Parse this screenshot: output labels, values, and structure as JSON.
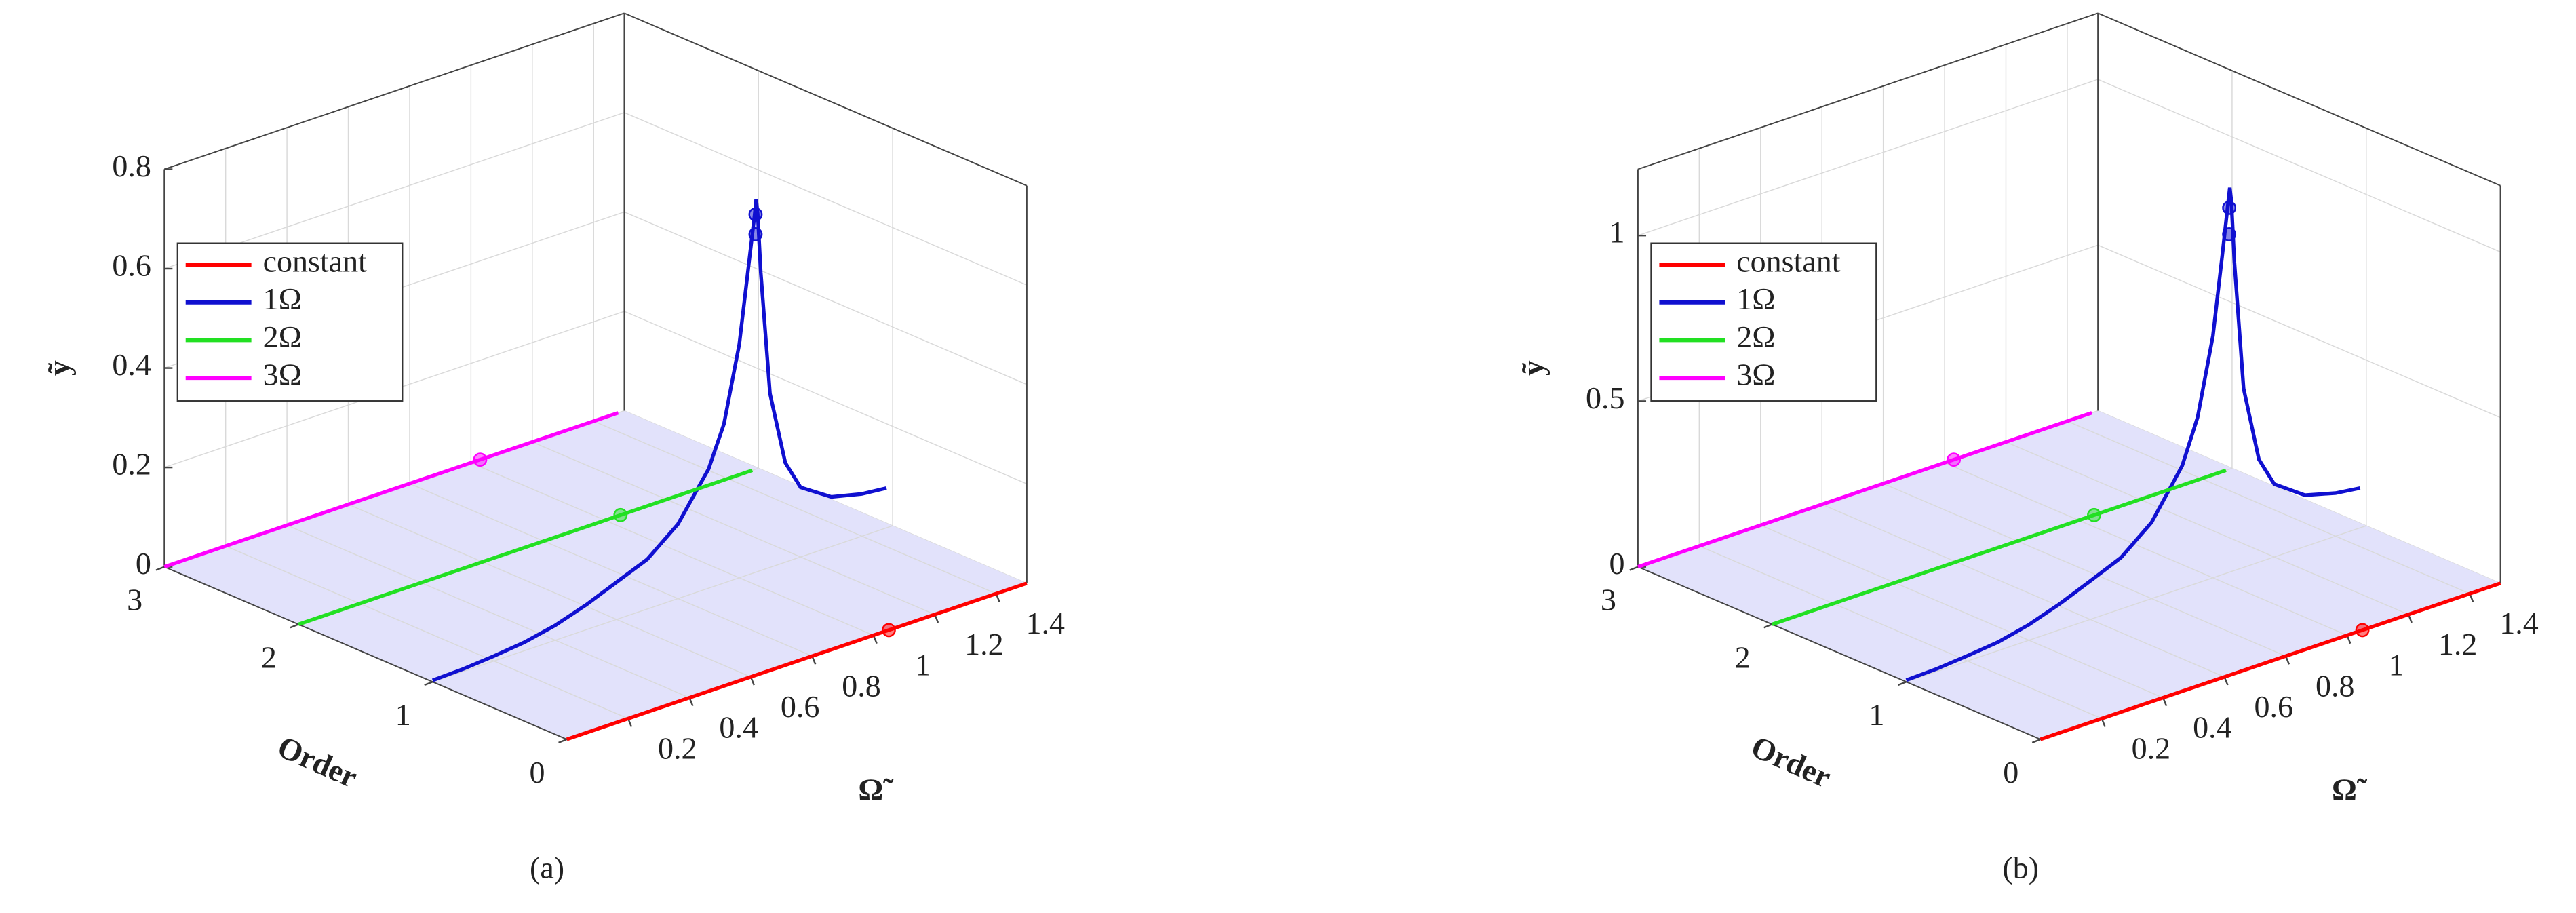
{
  "chart_data": [
    {
      "type": "line3d",
      "panel_label": "(a)",
      "xlabel": "Ω̃",
      "ylabel": "Order",
      "zlabel": "ỹ",
      "xlim": [
        0,
        1.5
      ],
      "ylim": [
        0,
        3
      ],
      "zlim": [
        0,
        0.8
      ],
      "xticks": [
        0.2,
        0.4,
        0.6,
        0.8,
        1,
        1.2,
        1.4
      ],
      "yticks": [
        0,
        1,
        2,
        3
      ],
      "zticks": [
        0,
        0.2,
        0.4,
        0.6,
        0.8
      ],
      "grid": true,
      "legend": "upper left",
      "series": [
        {
          "name": "constant",
          "color": "#ff0000",
          "order": 0,
          "x": [
            0,
            1.5
          ],
          "values": [
            0,
            0
          ],
          "marker_x": [
            1.05
          ],
          "marker_values": [
            0
          ]
        },
        {
          "name": "1Ω",
          "color": "#1010d0",
          "order": 1,
          "x": [
            0,
            0.1,
            0.2,
            0.3,
            0.4,
            0.5,
            0.6,
            0.7,
            0.8,
            0.9,
            0.95,
            1.0,
            1.03,
            1.05,
            1.055,
            1.06,
            1.07,
            1.1,
            1.15,
            1.2,
            1.3,
            1.4,
            1.48
          ],
          "values": [
            0.003,
            0.005,
            0.01,
            0.017,
            0.03,
            0.05,
            0.075,
            0.1,
            0.15,
            0.24,
            0.32,
            0.47,
            0.62,
            0.72,
            0.75,
            0.72,
            0.6,
            0.35,
            0.2,
            0.14,
            0.1,
            0.085,
            0.08
          ],
          "marker_x": [
            1.053,
            1.053
          ],
          "marker_values": [
            0.72,
            0.68
          ]
        },
        {
          "name": "2Ω",
          "color": "#22e022",
          "order": 2,
          "x": [
            0,
            1.48
          ],
          "values": [
            0,
            0
          ],
          "marker_x": [
            1.05
          ],
          "marker_values": [
            0
          ]
        },
        {
          "name": "3Ω",
          "color": "#ff00ff",
          "order": 3,
          "x": [
            0,
            1.48
          ],
          "values": [
            0,
            0
          ],
          "marker_x": [
            1.03
          ],
          "marker_values": [
            0
          ]
        }
      ]
    },
    {
      "type": "line3d",
      "panel_label": "(b)",
      "xlabel": "Ω̃",
      "ylabel": "Order",
      "zlabel": "ỹ",
      "xlim": [
        0,
        1.5
      ],
      "ylim": [
        0,
        3
      ],
      "zlim": [
        0,
        1.2
      ],
      "xticks": [
        0.2,
        0.4,
        0.6,
        0.8,
        1,
        1.2,
        1.4
      ],
      "yticks": [
        0,
        1,
        2,
        3
      ],
      "zticks": [
        0,
        0.5,
        1
      ],
      "grid": true,
      "legend": "upper left",
      "series": [
        {
          "name": "constant",
          "color": "#ff0000",
          "order": 0,
          "x": [
            0,
            1.5
          ],
          "values": [
            0,
            0
          ],
          "marker_x": [
            1.05
          ],
          "marker_values": [
            0
          ]
        },
        {
          "name": "1Ω",
          "color": "#1010d0",
          "order": 1,
          "x": [
            0,
            0.1,
            0.2,
            0.3,
            0.4,
            0.5,
            0.6,
            0.7,
            0.8,
            0.9,
            0.95,
            1.0,
            1.03,
            1.05,
            1.055,
            1.06,
            1.07,
            1.1,
            1.15,
            1.2,
            1.3,
            1.4,
            1.48
          ],
          "values": [
            0.005,
            0.008,
            0.016,
            0.026,
            0.047,
            0.078,
            0.116,
            0.155,
            0.23,
            0.37,
            0.5,
            0.73,
            0.96,
            1.12,
            1.16,
            1.12,
            0.93,
            0.54,
            0.31,
            0.22,
            0.155,
            0.13,
            0.12
          ],
          "marker_x": [
            1.053,
            1.053
          ],
          "marker_values": [
            1.1,
            1.02
          ]
        },
        {
          "name": "2Ω",
          "color": "#22e022",
          "order": 2,
          "x": [
            0,
            1.48
          ],
          "values": [
            0,
            0
          ],
          "marker_x": [
            1.05
          ],
          "marker_values": [
            0
          ]
        },
        {
          "name": "3Ω",
          "color": "#ff00ff",
          "order": 3,
          "x": [
            0,
            1.48
          ],
          "values": [
            0,
            0
          ],
          "marker_x": [
            1.03
          ],
          "marker_values": [
            0
          ]
        }
      ]
    }
  ]
}
